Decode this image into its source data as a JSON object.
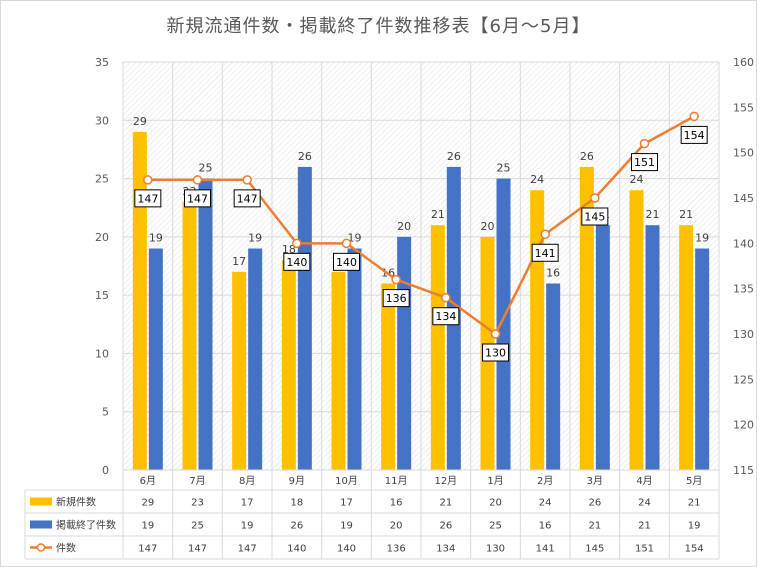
{
  "chart_data": {
    "type": "bar",
    "title": "新規流通件数・掲載終了件数推移表【6月～5月】",
    "categories": [
      "6月",
      "7月",
      "8月",
      "9月",
      "10月",
      "11月",
      "12月",
      "1月",
      "2月",
      "3月",
      "4月",
      "5月"
    ],
    "series": [
      {
        "name": "新規件数",
        "type": "bar",
        "axis": "left",
        "color": "#ffc000",
        "values": [
          29,
          23,
          17,
          18,
          17,
          16,
          21,
          20,
          24,
          26,
          24,
          21
        ]
      },
      {
        "name": "掲載終了件数",
        "type": "bar",
        "axis": "left",
        "color": "#4472c4",
        "values": [
          19,
          25,
          19,
          26,
          19,
          20,
          26,
          25,
          16,
          21,
          21,
          19
        ]
      },
      {
        "name": "件数",
        "type": "line",
        "axis": "right",
        "color": "#ed7d31",
        "values": [
          147,
          147,
          147,
          140,
          140,
          136,
          134,
          130,
          141,
          145,
          151,
          154
        ]
      }
    ],
    "ylim_left": [
      0,
      35
    ],
    "yticks_left": [
      0,
      5,
      10,
      15,
      20,
      25,
      30,
      35
    ],
    "ylim_right": [
      115,
      160
    ],
    "yticks_right": [
      115,
      120,
      125,
      130,
      135,
      140,
      145,
      150,
      155,
      160
    ],
    "grid": true,
    "legend": "data-table-below"
  }
}
